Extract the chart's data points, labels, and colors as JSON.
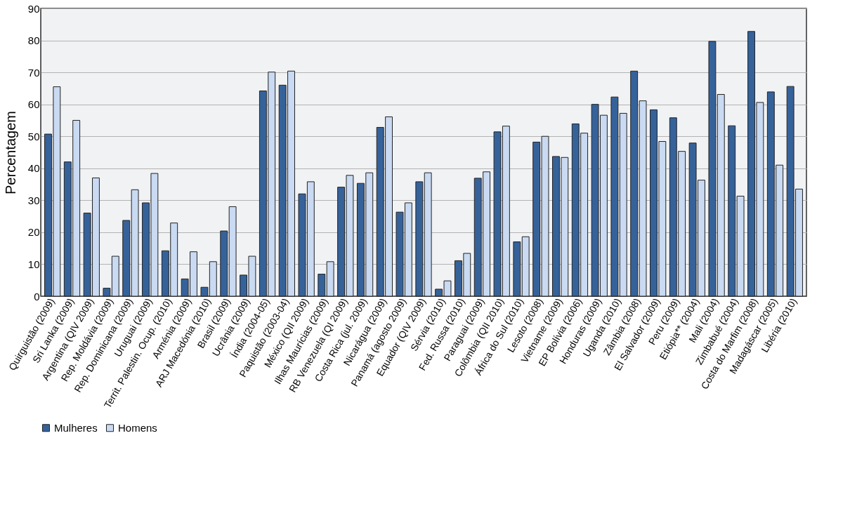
{
  "chart_data": {
    "type": "bar",
    "ylabel": "Percentagem",
    "categories": [
      "Quirguistão (2009)",
      "Sri Lanka (2009)",
      "Argentina (QIV 2009)",
      "Rep. Moldávia (2009)",
      "Rep. Dominicana (2009)",
      "Uruguai (2009)",
      "Territ. Palestin. Ocup. (2010)",
      "Arménia (2009)",
      "ARJ Macedónia (2010)",
      "Brasil (2009)",
      "Ucrânia (2009)",
      "Índia (2004-05)",
      "Paquistão (2003-04)",
      "México (QII 2009)",
      "Ilhas Maurícias (2009)",
      "RB Venezuela (QI 2009)",
      "Costa Rica (jul. 2009)",
      "Nicarágua (2009)",
      "Panamá (agosto 2009)",
      "Equador (QIV 2009)",
      "Sérvia (2010)",
      "Fed. Russa (2010)",
      "Paraguai (2009)",
      "Colômbia (QII 2010)",
      "África do Sul (2010)",
      "Lesoto (2008)",
      "Vietname (2009)",
      "EP Bolívia (2006)",
      "Honduras (2009)",
      "Uganda (2010)",
      "Zâmbia (2008)",
      "El Salvador (2009)",
      "Peru (2009)",
      "Etiópia** (2004)",
      "Mali (2004)",
      "Zimbabué (2004)",
      "Costa do Marfim (2008)",
      "Madagáscar (2005)",
      "Libéria (2010)"
    ],
    "series": [
      {
        "name": "Mulheres",
        "color": "#36629a",
        "values": [
          50.7,
          42,
          26,
          2.5,
          23.7,
          29.2,
          14.2,
          5.4,
          2.8,
          20.4,
          6.6,
          64.2,
          66,
          32,
          6.9,
          34.1,
          35.3,
          52.8,
          26.3,
          35.8,
          2.2,
          11.1,
          36.9,
          51.4,
          17,
          48.2,
          43.7,
          53.9,
          60,
          62.3,
          70.4,
          58.3,
          55.8,
          47.9,
          79.7,
          53.3,
          82.8,
          63.9,
          65.6
        ]
      },
      {
        "name": "Homens",
        "color": "#c9daf2",
        "values": [
          65.5,
          55,
          37,
          12.5,
          33.3,
          38.4,
          22.9,
          13.9,
          10.8,
          28,
          12.5,
          70.1,
          70.4,
          35.8,
          10.8,
          37.8,
          38.6,
          56.1,
          29.2,
          38.6,
          4.8,
          13.4,
          38.9,
          53.2,
          18.6,
          50,
          43.4,
          51,
          56.6,
          57.2,
          61.1,
          48.4,
          45.3,
          36.3,
          63.1,
          31.3,
          60.6,
          41,
          33.5
        ]
      }
    ],
    "ylim": [
      0,
      90
    ],
    "yticks": [
      0,
      10,
      20,
      30,
      40,
      50,
      60,
      70,
      80,
      90
    ],
    "grid": "y",
    "legend": "bottom"
  }
}
